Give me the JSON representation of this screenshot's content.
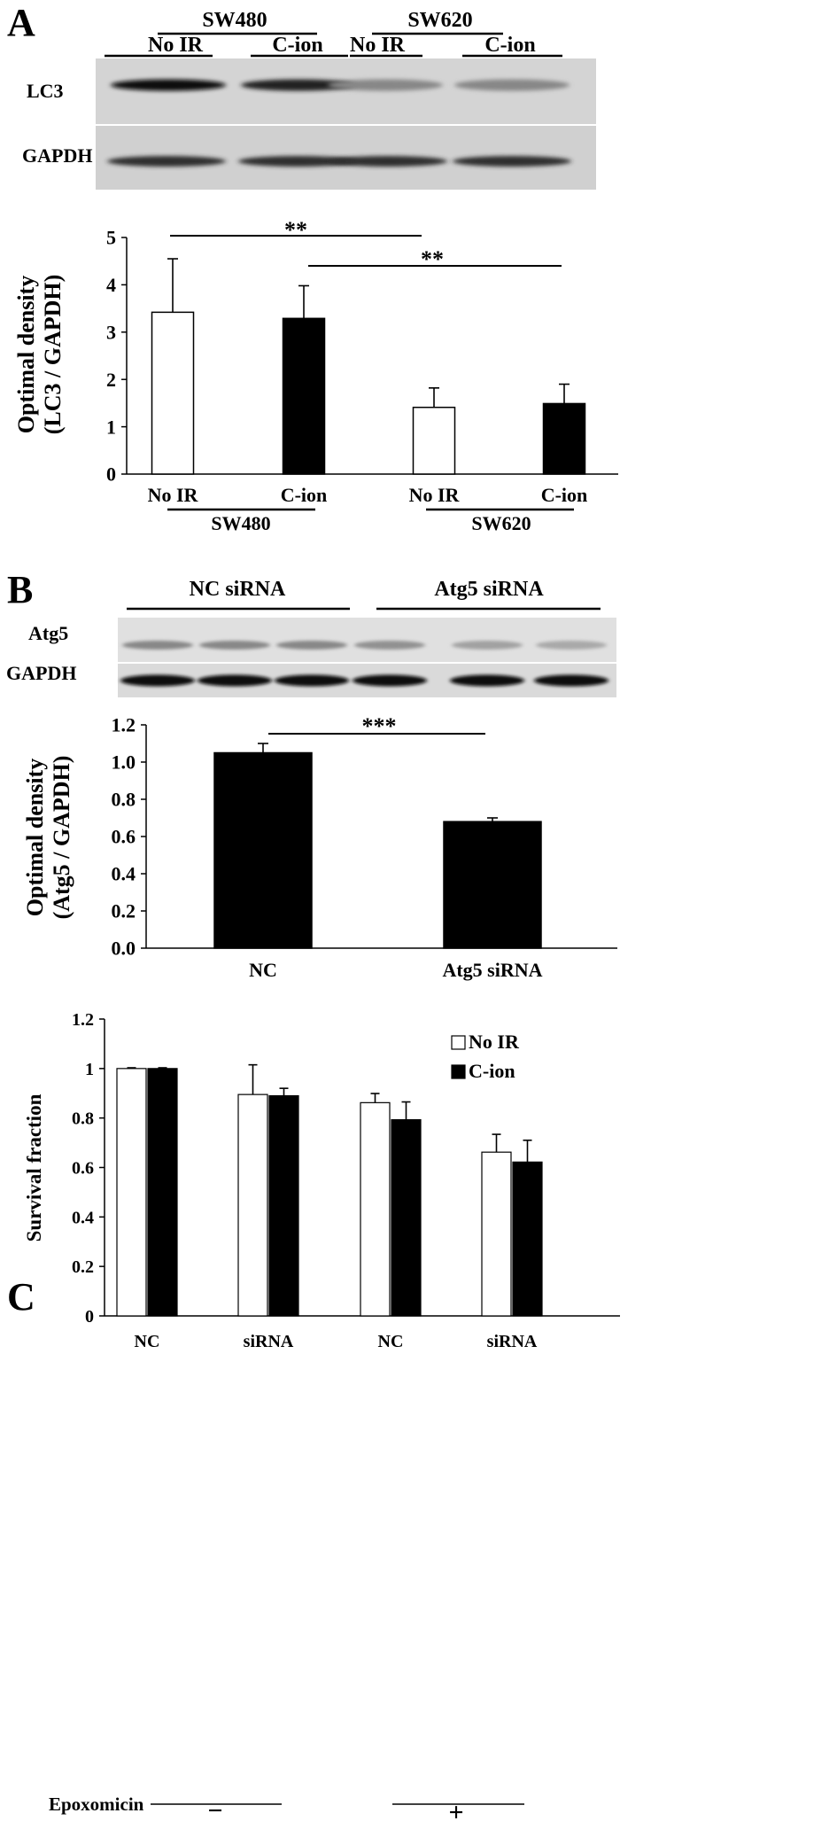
{
  "panel_a": {
    "letter": "A",
    "blot": {
      "cell_lines": [
        "SW480",
        "SW620"
      ],
      "lane_labels": [
        "No IR",
        "C-ion",
        "No IR",
        "C-ion"
      ],
      "rows": [
        "LC3",
        "GAPDH"
      ],
      "lc3_band_intensity": [
        0.95,
        0.85,
        0.35,
        0.35
      ],
      "gapdh_band_intensity": [
        0.8,
        0.8,
        0.8,
        0.8
      ]
    },
    "significance": [
      "**",
      "**"
    ],
    "group_labels": [
      "SW480",
      "SW620"
    ]
  },
  "panel_b": {
    "letter": "B",
    "blot": {
      "groups": [
        "NC siRNA",
        "Atg5 siRNA"
      ],
      "rows": [
        "Atg5",
        "GAPDH"
      ],
      "atg5_band_intensity": [
        0.35,
        0.35,
        0.35,
        0.3,
        0.22,
        0.18
      ],
      "gapdh_band_intensity": [
        0.95,
        0.95,
        0.95,
        0.95,
        0.95,
        0.95
      ]
    },
    "significance": [
      "***"
    ]
  },
  "panel_c": {
    "letter": "C",
    "treatment_label": "Epoxomicin",
    "treatment_signs": [
      "−",
      "+"
    ]
  },
  "chart_data": [
    {
      "id": "A",
      "type": "bar",
      "categories": [
        "No IR",
        "C-ion",
        "No IR",
        "C-ion"
      ],
      "values": [
        3.42,
        3.29,
        1.41,
        1.49
      ],
      "errors": [
        1.13,
        0.69,
        0.41,
        0.41
      ],
      "bar_colors": [
        "#ffffff",
        "#000000",
        "#ffffff",
        "#000000"
      ],
      "ylabel_lines": [
        "Optimal density",
        "(LC3 / GAPDH)"
      ],
      "ylim": [
        0,
        5
      ],
      "yticks": [
        "0",
        "1",
        "2",
        "3",
        "4",
        "5"
      ]
    },
    {
      "id": "B",
      "type": "bar",
      "categories": [
        "NC",
        "Atg5 siRNA"
      ],
      "values": [
        1.05,
        0.68
      ],
      "errors": [
        0.05,
        0.02
      ],
      "bar_colors": [
        "#000000",
        "#000000"
      ],
      "ylabel_lines": [
        "Optimal density",
        "(Atg5 / GAPDH)"
      ],
      "ylim": [
        0,
        1.2
      ],
      "yticks": [
        "0.0",
        "0.2",
        "0.4",
        "0.6",
        "0.8",
        "1.0",
        "1.2"
      ]
    },
    {
      "id": "C",
      "type": "bar",
      "categories": [
        "NC",
        "siRNA",
        "NC",
        "siRNA"
      ],
      "series": [
        {
          "name": "No IR",
          "color": "#ffffff",
          "values": [
            1.0,
            0.895,
            0.862,
            0.662
          ],
          "errors": [
            0.003,
            0.12,
            0.037,
            0.072
          ]
        },
        {
          "name": "C-ion",
          "color": "#000000",
          "values": [
            1.0,
            0.89,
            0.793,
            0.622
          ],
          "errors": [
            0.003,
            0.03,
            0.072,
            0.088
          ]
        }
      ],
      "ylabel": "Survival fraction",
      "ylim": [
        0,
        1.2
      ],
      "yticks": [
        "0",
        "0.2",
        "0.4",
        "0.6",
        "0.8",
        "1",
        "1.2"
      ],
      "legend_position": "top-right"
    }
  ]
}
